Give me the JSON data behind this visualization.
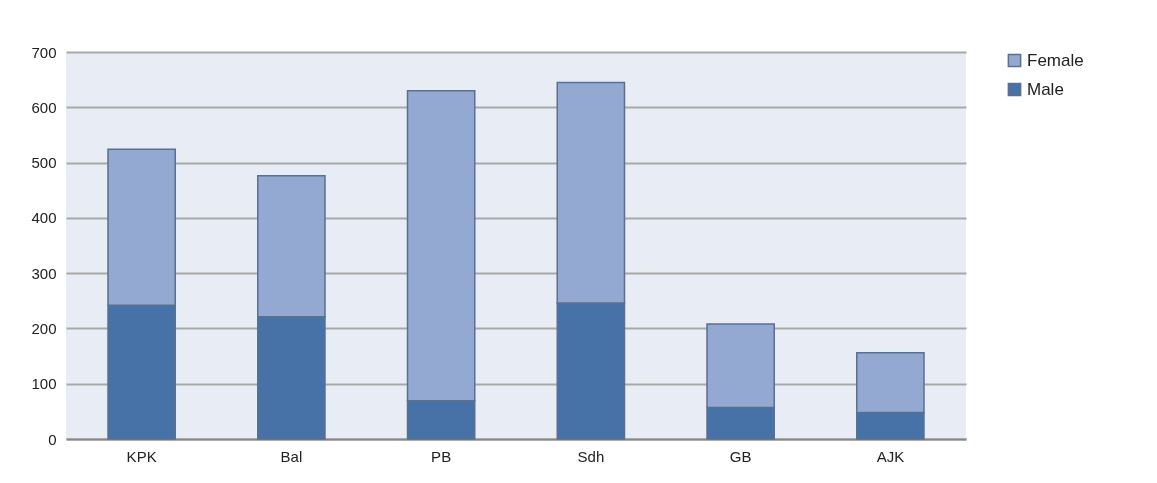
{
  "chart_data": {
    "type": "bar",
    "stacked": true,
    "categories": [
      "KPK",
      "Bal",
      "PB",
      "Sdh",
      "GB",
      "AJK"
    ],
    "series": [
      {
        "name": "Male",
        "color": "#4672a8",
        "values": [
          242,
          221,
          69,
          246,
          57,
          48
        ]
      },
      {
        "name": "Female",
        "color": "#93a9d2",
        "values": [
          282,
          255,
          561,
          399,
          151,
          108
        ]
      }
    ],
    "ylim": [
      0,
      700
    ],
    "yticks": [
      0,
      100,
      200,
      300,
      400,
      500,
      600,
      700
    ],
    "grid": "y",
    "legend": "right"
  }
}
